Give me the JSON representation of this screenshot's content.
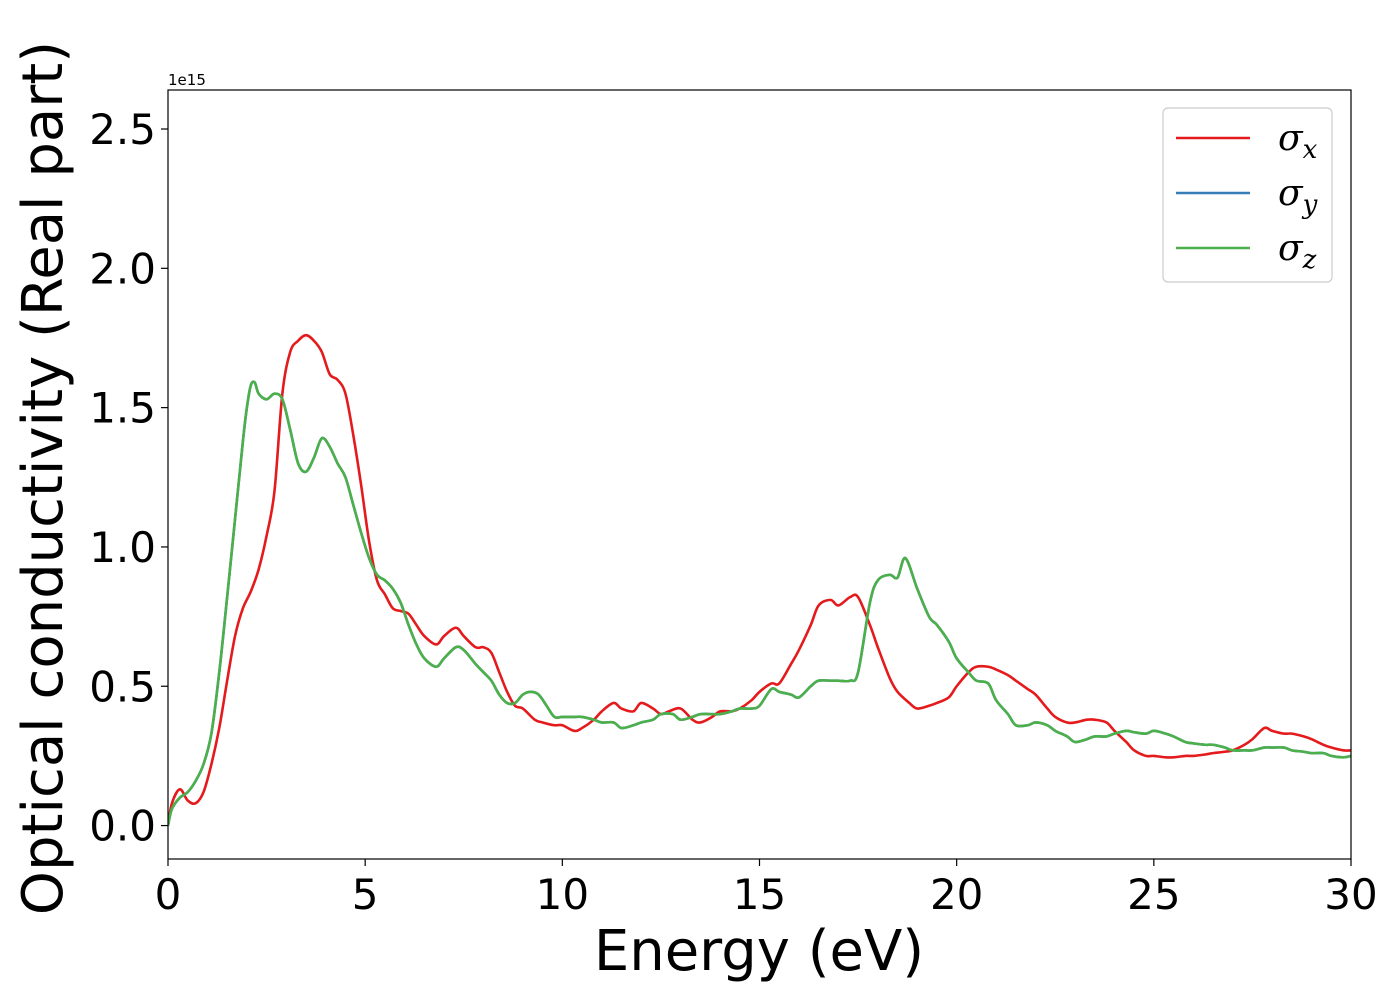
{
  "chart_data": {
    "type": "line",
    "title": "",
    "xlabel": "Energy (eV)",
    "ylabel": "Optical conductivity (Real part)",
    "y_offset_label": "1e15",
    "xlim": [
      0,
      30
    ],
    "ylim": [
      -0.12,
      2.64
    ],
    "x_ticks": [
      0,
      5,
      10,
      15,
      20,
      25,
      30
    ],
    "x_tick_labels": [
      "0",
      "5",
      "10",
      "15",
      "20",
      "25",
      "30"
    ],
    "y_ticks": [
      0.0,
      0.5,
      1.0,
      1.5,
      2.0,
      2.5
    ],
    "y_tick_labels": [
      "0.0",
      "0.5",
      "1.0",
      "1.5",
      "2.0",
      "2.5"
    ],
    "grid": false,
    "legend_position": "top-right",
    "series": [
      {
        "name": "σx",
        "label_base": "σ",
        "label_sub": "x",
        "color": "#e41a1c",
        "x": [
          0,
          0.1,
          0.3,
          0.5,
          0.7,
          0.9,
          1.1,
          1.3,
          1.5,
          1.7,
          1.9,
          2.1,
          2.3,
          2.5,
          2.7,
          2.9,
          3.1,
          3.3,
          3.5,
          3.7,
          3.9,
          4.1,
          4.3,
          4.5,
          4.7,
          4.9,
          5.1,
          5.3,
          5.5,
          5.7,
          5.9,
          6.1,
          6.3,
          6.5,
          6.8,
          7.0,
          7.3,
          7.5,
          7.8,
          8.0,
          8.2,
          8.4,
          8.6,
          8.8,
          9.0,
          9.3,
          9.5,
          9.8,
          10.0,
          10.3,
          10.5,
          10.8,
          11.0,
          11.3,
          11.5,
          11.8,
          12.0,
          12.3,
          12.5,
          12.7,
          13.0,
          13.3,
          13.5,
          13.8,
          14.0,
          14.3,
          14.5,
          14.8,
          15.0,
          15.3,
          15.5,
          15.8,
          16.0,
          16.3,
          16.5,
          16.8,
          17.0,
          17.3,
          17.5,
          17.8,
          18.0,
          18.3,
          18.5,
          18.8,
          19.0,
          19.3,
          19.5,
          19.8,
          20.0,
          20.3,
          20.5,
          20.8,
          21.0,
          21.3,
          21.5,
          21.8,
          22.0,
          22.3,
          22.5,
          22.8,
          23.0,
          23.3,
          23.5,
          23.8,
          24.0,
          24.3,
          24.5,
          24.8,
          25.0,
          25.3,
          25.5,
          25.8,
          26.0,
          26.3,
          26.5,
          26.8,
          27.0,
          27.3,
          27.5,
          27.8,
          28.0,
          28.3,
          28.5,
          28.8,
          29.0,
          29.3,
          29.5,
          29.8,
          30.0
        ],
        "y": [
          0.0,
          0.08,
          0.13,
          0.09,
          0.08,
          0.12,
          0.22,
          0.35,
          0.52,
          0.68,
          0.78,
          0.84,
          0.92,
          1.04,
          1.2,
          1.55,
          1.7,
          1.74,
          1.76,
          1.74,
          1.7,
          1.62,
          1.6,
          1.55,
          1.4,
          1.22,
          1.02,
          0.88,
          0.83,
          0.78,
          0.77,
          0.76,
          0.72,
          0.68,
          0.65,
          0.68,
          0.71,
          0.68,
          0.64,
          0.64,
          0.62,
          0.55,
          0.48,
          0.43,
          0.42,
          0.38,
          0.37,
          0.36,
          0.36,
          0.34,
          0.35,
          0.38,
          0.41,
          0.44,
          0.42,
          0.41,
          0.44,
          0.42,
          0.4,
          0.41,
          0.42,
          0.38,
          0.37,
          0.39,
          0.41,
          0.41,
          0.42,
          0.45,
          0.48,
          0.51,
          0.51,
          0.58,
          0.63,
          0.72,
          0.79,
          0.81,
          0.79,
          0.82,
          0.82,
          0.72,
          0.64,
          0.53,
          0.48,
          0.44,
          0.42,
          0.43,
          0.44,
          0.46,
          0.5,
          0.55,
          0.57,
          0.57,
          0.56,
          0.54,
          0.52,
          0.49,
          0.47,
          0.42,
          0.39,
          0.37,
          0.37,
          0.38,
          0.38,
          0.37,
          0.34,
          0.3,
          0.27,
          0.25,
          0.25,
          0.245,
          0.245,
          0.25,
          0.25,
          0.255,
          0.26,
          0.265,
          0.27,
          0.29,
          0.31,
          0.35,
          0.34,
          0.33,
          0.33,
          0.32,
          0.31,
          0.29,
          0.28,
          0.27,
          0.27
        ]
      },
      {
        "name": "σy",
        "label_base": "σ",
        "label_sub": "y",
        "color": "#377eb8",
        "x": [
          0,
          0.1,
          0.3,
          0.5,
          0.7,
          0.9,
          1.1,
          1.3,
          1.5,
          1.7,
          1.9,
          2.0,
          2.1,
          2.2,
          2.3,
          2.5,
          2.7,
          2.9,
          3.1,
          3.3,
          3.5,
          3.7,
          3.9,
          4.1,
          4.3,
          4.5,
          4.7,
          4.9,
          5.1,
          5.3,
          5.5,
          5.7,
          5.9,
          6.1,
          6.3,
          6.5,
          6.8,
          7.0,
          7.3,
          7.5,
          7.8,
          8.0,
          8.2,
          8.4,
          8.6,
          8.8,
          9.0,
          9.2,
          9.4,
          9.6,
          9.8,
          10.0,
          10.3,
          10.5,
          10.8,
          11.0,
          11.3,
          11.5,
          11.8,
          12.0,
          12.3,
          12.5,
          12.8,
          13.0,
          13.3,
          13.5,
          13.8,
          14.0,
          14.3,
          14.5,
          14.8,
          15.0,
          15.3,
          15.5,
          15.8,
          16.0,
          16.3,
          16.5,
          16.8,
          17.0,
          17.3,
          17.5,
          17.8,
          18.0,
          18.3,
          18.5,
          18.7,
          19.0,
          19.3,
          19.5,
          19.8,
          20.0,
          20.3,
          20.5,
          20.8,
          21.0,
          21.3,
          21.5,
          21.8,
          22.0,
          22.3,
          22.5,
          22.8,
          23.0,
          23.3,
          23.5,
          23.8,
          24.0,
          24.3,
          24.5,
          24.8,
          25.0,
          25.3,
          25.5,
          25.8,
          26.0,
          26.3,
          26.5,
          26.8,
          27.0,
          27.3,
          27.5,
          27.8,
          28.0,
          28.3,
          28.5,
          28.8,
          29.0,
          29.3,
          29.5,
          29.8,
          30.0
        ],
        "y": [
          0.0,
          0.06,
          0.1,
          0.12,
          0.16,
          0.22,
          0.33,
          0.55,
          0.82,
          1.1,
          1.38,
          1.5,
          1.58,
          1.59,
          1.55,
          1.53,
          1.55,
          1.53,
          1.42,
          1.3,
          1.27,
          1.32,
          1.39,
          1.36,
          1.3,
          1.25,
          1.15,
          1.05,
          0.96,
          0.9,
          0.88,
          0.85,
          0.8,
          0.72,
          0.65,
          0.6,
          0.57,
          0.6,
          0.64,
          0.63,
          0.58,
          0.55,
          0.52,
          0.47,
          0.44,
          0.44,
          0.47,
          0.48,
          0.47,
          0.43,
          0.39,
          0.39,
          0.39,
          0.39,
          0.38,
          0.37,
          0.37,
          0.35,
          0.36,
          0.37,
          0.38,
          0.4,
          0.4,
          0.38,
          0.39,
          0.4,
          0.4,
          0.4,
          0.41,
          0.42,
          0.42,
          0.43,
          0.49,
          0.48,
          0.47,
          0.46,
          0.5,
          0.52,
          0.52,
          0.52,
          0.52,
          0.55,
          0.8,
          0.88,
          0.9,
          0.89,
          0.96,
          0.85,
          0.75,
          0.72,
          0.66,
          0.6,
          0.55,
          0.52,
          0.51,
          0.45,
          0.4,
          0.36,
          0.36,
          0.37,
          0.36,
          0.34,
          0.32,
          0.3,
          0.31,
          0.32,
          0.32,
          0.33,
          0.34,
          0.335,
          0.33,
          0.34,
          0.33,
          0.32,
          0.3,
          0.295,
          0.29,
          0.29,
          0.28,
          0.27,
          0.27,
          0.27,
          0.28,
          0.28,
          0.28,
          0.27,
          0.265,
          0.26,
          0.26,
          0.25,
          0.245,
          0.25
        ]
      },
      {
        "name": "σz",
        "label_base": "σ",
        "label_sub": "z",
        "color": "#4daf4a",
        "x": [
          0,
          0.1,
          0.3,
          0.5,
          0.7,
          0.9,
          1.1,
          1.3,
          1.5,
          1.7,
          1.9,
          2.0,
          2.1,
          2.2,
          2.3,
          2.5,
          2.7,
          2.9,
          3.1,
          3.3,
          3.5,
          3.7,
          3.9,
          4.1,
          4.3,
          4.5,
          4.7,
          4.9,
          5.1,
          5.3,
          5.5,
          5.7,
          5.9,
          6.1,
          6.3,
          6.5,
          6.8,
          7.0,
          7.3,
          7.5,
          7.8,
          8.0,
          8.2,
          8.4,
          8.6,
          8.8,
          9.0,
          9.2,
          9.4,
          9.6,
          9.8,
          10.0,
          10.3,
          10.5,
          10.8,
          11.0,
          11.3,
          11.5,
          11.8,
          12.0,
          12.3,
          12.5,
          12.8,
          13.0,
          13.3,
          13.5,
          13.8,
          14.0,
          14.3,
          14.5,
          14.8,
          15.0,
          15.3,
          15.5,
          15.8,
          16.0,
          16.3,
          16.5,
          16.8,
          17.0,
          17.3,
          17.5,
          17.8,
          18.0,
          18.3,
          18.5,
          18.7,
          19.0,
          19.3,
          19.5,
          19.8,
          20.0,
          20.3,
          20.5,
          20.8,
          21.0,
          21.3,
          21.5,
          21.8,
          22.0,
          22.3,
          22.5,
          22.8,
          23.0,
          23.3,
          23.5,
          23.8,
          24.0,
          24.3,
          24.5,
          24.8,
          25.0,
          25.3,
          25.5,
          25.8,
          26.0,
          26.3,
          26.5,
          26.8,
          27.0,
          27.3,
          27.5,
          27.8,
          28.0,
          28.3,
          28.5,
          28.8,
          29.0,
          29.3,
          29.5,
          29.8,
          30.0
        ],
        "y": [
          0.0,
          0.06,
          0.1,
          0.12,
          0.16,
          0.22,
          0.33,
          0.55,
          0.82,
          1.1,
          1.38,
          1.5,
          1.58,
          1.59,
          1.55,
          1.53,
          1.55,
          1.53,
          1.42,
          1.3,
          1.27,
          1.32,
          1.39,
          1.36,
          1.3,
          1.25,
          1.15,
          1.05,
          0.96,
          0.9,
          0.88,
          0.85,
          0.8,
          0.72,
          0.65,
          0.6,
          0.57,
          0.6,
          0.64,
          0.63,
          0.58,
          0.55,
          0.52,
          0.47,
          0.44,
          0.44,
          0.47,
          0.48,
          0.47,
          0.43,
          0.39,
          0.39,
          0.39,
          0.39,
          0.38,
          0.37,
          0.37,
          0.35,
          0.36,
          0.37,
          0.38,
          0.4,
          0.4,
          0.38,
          0.39,
          0.4,
          0.4,
          0.4,
          0.41,
          0.42,
          0.42,
          0.43,
          0.49,
          0.48,
          0.47,
          0.46,
          0.5,
          0.52,
          0.52,
          0.52,
          0.52,
          0.55,
          0.8,
          0.88,
          0.9,
          0.89,
          0.96,
          0.85,
          0.75,
          0.72,
          0.66,
          0.6,
          0.55,
          0.52,
          0.51,
          0.45,
          0.4,
          0.36,
          0.36,
          0.37,
          0.36,
          0.34,
          0.32,
          0.3,
          0.31,
          0.32,
          0.32,
          0.33,
          0.34,
          0.335,
          0.33,
          0.34,
          0.33,
          0.32,
          0.3,
          0.295,
          0.29,
          0.29,
          0.28,
          0.27,
          0.27,
          0.27,
          0.28,
          0.28,
          0.28,
          0.27,
          0.265,
          0.26,
          0.26,
          0.25,
          0.245,
          0.25
        ]
      }
    ]
  }
}
